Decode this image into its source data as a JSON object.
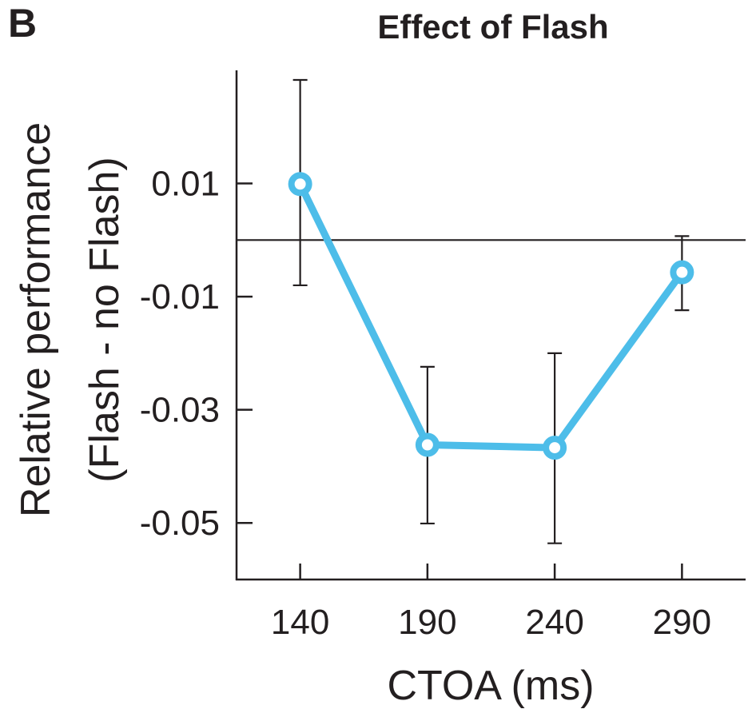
{
  "panel_label": "B",
  "chart_data": {
    "type": "line",
    "title": "Effect of Flash",
    "xlabel": "CTOA (ms)",
    "ylabel_lines": [
      "Relative performance",
      "(Flash - no Flash)"
    ],
    "x": [
      140,
      190,
      240,
      290
    ],
    "x_tick_labels": [
      "140",
      "190",
      "240",
      "290"
    ],
    "y_ticks": [
      0.01,
      -0.01,
      -0.03,
      -0.05
    ],
    "y_tick_labels": [
      "0.01",
      "-0.01",
      "-0.03",
      "-0.05"
    ],
    "xlim": [
      115,
      315
    ],
    "ylim": [
      -0.06,
      0.03
    ],
    "reference_line_y": 0,
    "grid": false,
    "series": [
      {
        "name": "Effect of Flash",
        "color": "#4dbde9",
        "values": [
          0.0099,
          -0.0362,
          -0.0367,
          -0.0057
        ],
        "error_upper": [
          0.0283,
          -0.0224,
          -0.02,
          0.0007
        ],
        "error_lower": [
          -0.008,
          -0.0501,
          -0.0536,
          -0.0124
        ]
      }
    ]
  }
}
